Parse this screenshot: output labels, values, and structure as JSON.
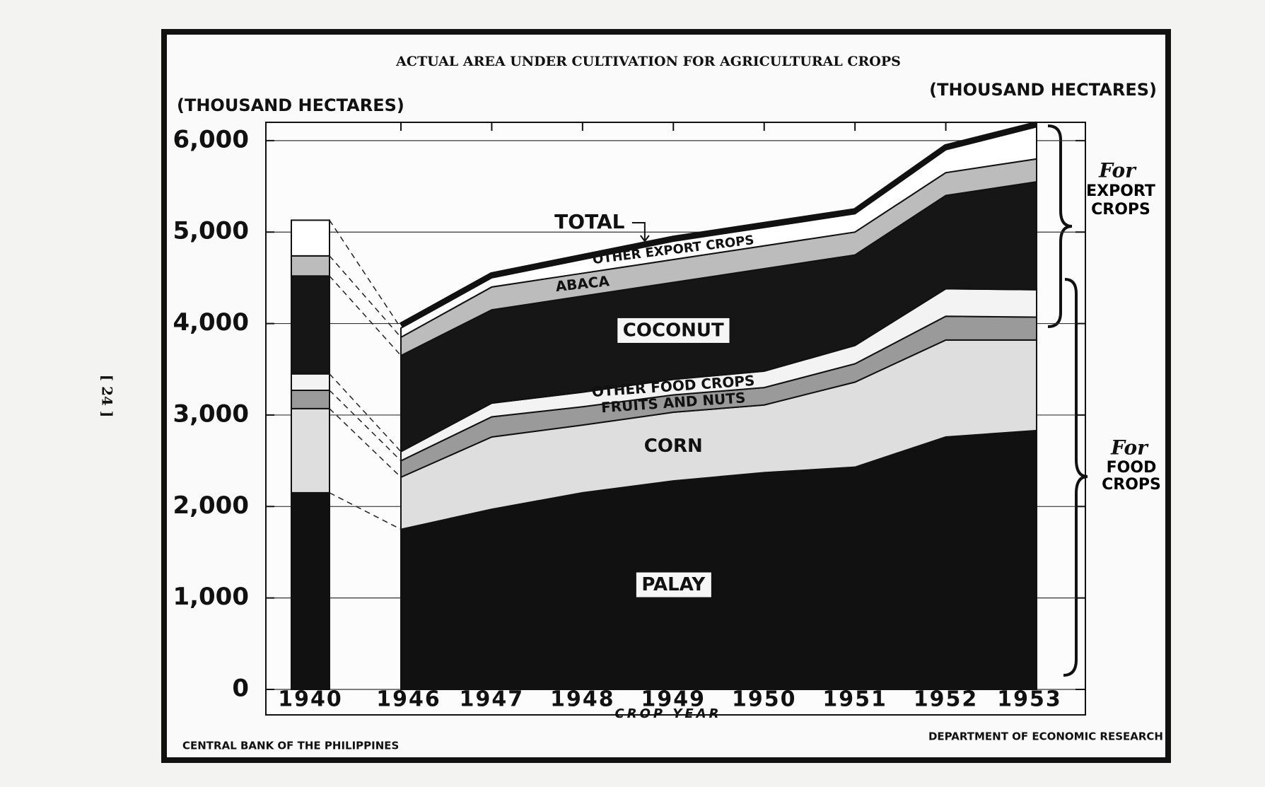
{
  "page_number": "[ 24 ]",
  "chart_data": {
    "type": "stacked-area",
    "title": "ACTUAL AREA UNDER CULTIVATION FOR AGRICULTURAL CROPS",
    "y_label": "(THOUSAND HECTARES)",
    "y2_label": "(THOUSAND HECTARES)",
    "x_label": "CROP YEAR",
    "source_left": "CENTRAL BANK OF THE PHILIPPINES",
    "source_right": "DEPARTMENT OF ECONOMIC RESEARCH",
    "total_label": "TOTAL",
    "export_group": {
      "prefix": "For",
      "label": "EXPORT CROPS"
    },
    "food_group": {
      "prefix": "For",
      "label": "FOOD CROPS"
    },
    "categories": [
      "1940",
      "1946",
      "1947",
      "1948",
      "1949",
      "1950",
      "1951",
      "1952",
      "1953"
    ],
    "series": [
      {
        "name": "PALAY",
        "color": "#111111",
        "values": [
          2150,
          1750,
          1970,
          2150,
          2280,
          2370,
          2430,
          2760,
          2830
        ]
      },
      {
        "name": "CORN",
        "color": "#dedede",
        "values": [
          920,
          570,
          790,
          740,
          750,
          740,
          930,
          1060,
          990
        ]
      },
      {
        "name": "FRUITS AND NUTS",
        "color": "#9a9a9a",
        "values": [
          200,
          180,
          220,
          200,
          190,
          190,
          200,
          260,
          250
        ]
      },
      {
        "name": "OTHER FOOD CROPS",
        "color": "#f3f3f3",
        "values": [
          180,
          100,
          150,
          160,
          170,
          180,
          200,
          300,
          300
        ]
      },
      {
        "name": "COCONUT",
        "color": "#161616",
        "values": [
          1070,
          1050,
          1020,
          1050,
          1060,
          1120,
          990,
          1020,
          1180
        ]
      },
      {
        "name": "ABACA",
        "color": "#bcbcbc",
        "values": [
          220,
          200,
          250,
          250,
          250,
          250,
          250,
          250,
          250
        ]
      },
      {
        "name": "OTHER EXPORT CROPS",
        "color": "#ffffff",
        "values": [
          390,
          100,
          100,
          150,
          200,
          200,
          200,
          250,
          350
        ]
      }
    ],
    "ylim": [
      0,
      6200
    ],
    "yticks": [
      0,
      {
        "value": 1000,
        "label": "1,000"
      },
      {
        "value": 2000,
        "label": "2,000"
      },
      {
        "value": 3000,
        "label": "3,000"
      },
      {
        "value": 4000,
        "label": "4,000"
      },
      {
        "value": 5000,
        "label": "5,000"
      },
      {
        "value": 6000,
        "label": "6,000"
      }
    ],
    "grid": true
  }
}
